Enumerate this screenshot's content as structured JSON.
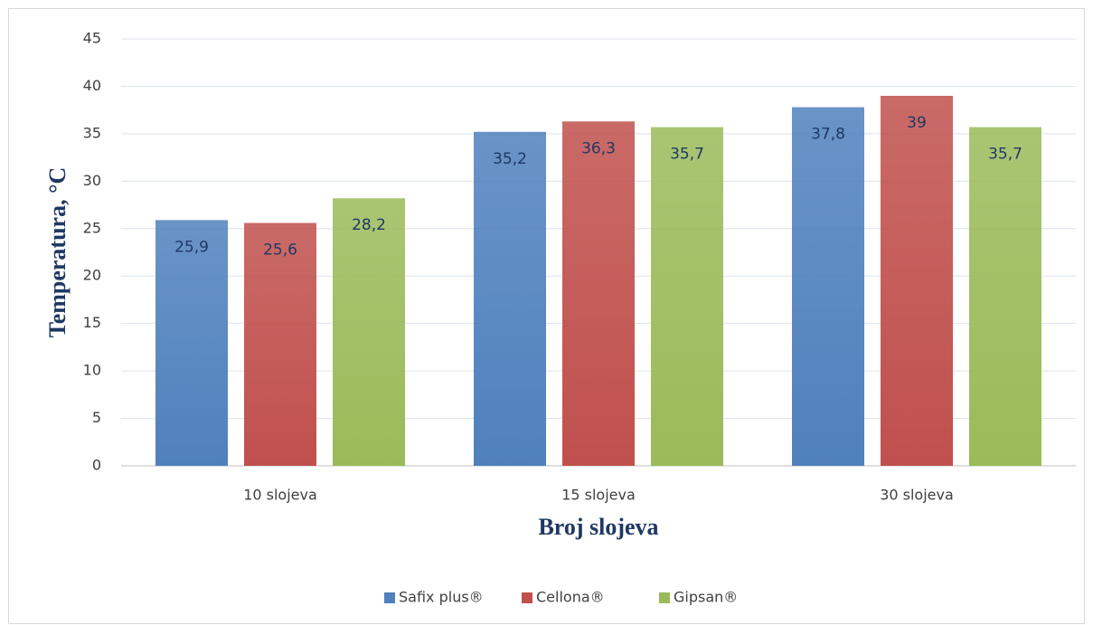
{
  "chart_data": {
    "type": "bar",
    "xlabel": "Broj slojeva",
    "ylabel": "Temperatura, °C",
    "categories": [
      "10 slojeva",
      "15 slojeva",
      "30 slojeva"
    ],
    "series": [
      {
        "name": "Safix plus®",
        "color": "#4f81bd",
        "values": [
          25.9,
          35.2,
          37.8
        ],
        "value_labels": [
          "25,9",
          "35,2",
          "37,8"
        ]
      },
      {
        "name": "Cellona®",
        "color": "#c0504d",
        "values": [
          25.6,
          36.3,
          39
        ],
        "value_labels": [
          "25,6",
          "36,3",
          "39"
        ]
      },
      {
        "name": "Gipsan®",
        "color": "#9bbb59",
        "values": [
          28.2,
          35.7,
          35.7
        ],
        "value_labels": [
          "28,2",
          "35,7",
          "35,7"
        ]
      }
    ],
    "ylim": [
      0,
      45
    ],
    "yticks": [
      0,
      5,
      10,
      15,
      20,
      25,
      30,
      35,
      40,
      45
    ],
    "grid": true,
    "legend": "bottom"
  }
}
